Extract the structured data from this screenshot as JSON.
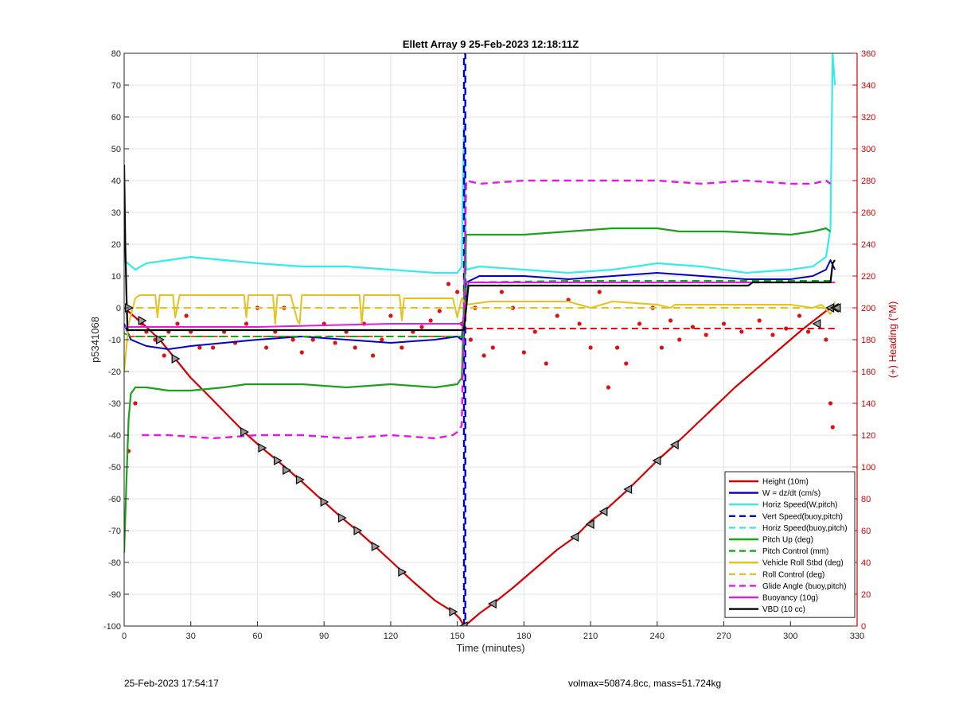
{
  "chart_data": {
    "type": "line",
    "title": "Ellett Array 9 25-Feb-2023 12:18:11Z",
    "xlabel": "Time (minutes)",
    "ylabel": "p5341068",
    "y2label": "(+) Heading (°M)",
    "xlim": [
      0,
      330
    ],
    "ylim": [
      -100,
      80
    ],
    "y2lim": [
      0,
      360
    ],
    "x_ticks": [
      0,
      30,
      60,
      90,
      120,
      150,
      180,
      210,
      240,
      270,
      300,
      330
    ],
    "y_ticks": [
      -100,
      -90,
      -80,
      -70,
      -60,
      -50,
      -40,
      -30,
      -20,
      -10,
      0,
      10,
      20,
      30,
      40,
      50,
      60,
      70,
      80
    ],
    "y2_ticks": [
      0,
      20,
      40,
      60,
      80,
      100,
      120,
      140,
      160,
      180,
      200,
      220,
      240,
      260,
      280,
      300,
      320,
      340,
      360
    ],
    "grid": true,
    "legend_position": "bottom-right",
    "colors": {
      "red": "#d40000",
      "blue": "#0000c8",
      "cyan": "#33ecec",
      "green": "#1aa31a",
      "yellow": "#e3c31b",
      "magenta": "#e01be0",
      "black": "#000000",
      "heading": "#e01010"
    },
    "series": [
      {
        "name": "Height (10m)",
        "color": "#d40000",
        "style": "solid",
        "width": 2.2,
        "x": [
          0,
          5,
          10,
          16,
          23,
          30,
          40,
          54,
          62,
          69,
          79,
          90,
          98,
          105,
          113,
          120,
          130,
          140,
          148,
          151,
          153,
          155,
          160,
          166,
          175,
          185,
          195,
          203,
          210,
          216,
          227,
          240,
          248,
          260,
          275,
          290,
          305,
          316,
          319,
          321
        ],
        "y": [
          0,
          -3,
          -6,
          -10,
          -16,
          -22,
          -29,
          -39,
          -44,
          -48,
          -54,
          -61,
          -66,
          -70,
          -75,
          -79.5,
          -86,
          -92,
          -95.5,
          -97.5,
          -100,
          -99,
          -96,
          -93,
          -88,
          -82,
          -76,
          -72,
          -67,
          -64,
          -57,
          -48,
          -43,
          -35,
          -25,
          -16,
          -7,
          -1,
          0,
          0
        ]
      },
      {
        "name": "W = dz/dt (cm/s)",
        "color": "#0000c8",
        "style": "solid",
        "width": 2,
        "x": [
          0,
          3,
          10,
          20,
          30,
          45,
          60,
          80,
          100,
          120,
          140,
          150,
          152,
          154,
          160,
          180,
          200,
          220,
          240,
          260,
          280,
          300,
          310,
          316,
          318,
          320
        ],
        "y": [
          -5,
          -10,
          -12,
          -13,
          -12,
          -11,
          -10,
          -9,
          -10,
          -11,
          -10,
          -9,
          -10,
          8,
          10,
          10,
          9,
          10,
          11,
          10,
          9,
          9,
          10,
          12,
          15,
          12
        ]
      },
      {
        "name": "Horiz Speed(W,pitch)",
        "color": "#33ecec",
        "style": "solid",
        "width": 2.2,
        "x": [
          0,
          5,
          10,
          20,
          30,
          45,
          60,
          80,
          100,
          120,
          140,
          150,
          152,
          153,
          154,
          160,
          180,
          200,
          220,
          240,
          260,
          280,
          300,
          310,
          316,
          318,
          319,
          320
        ],
        "y": [
          15,
          12,
          14,
          15,
          16,
          15,
          14,
          13,
          13,
          12,
          11,
          11,
          13,
          57,
          12,
          13,
          12,
          11,
          12,
          14,
          13,
          11,
          12,
          13,
          16,
          25,
          80,
          70
        ]
      },
      {
        "name": "Vert Speed(buoy,pitch)",
        "color": "#0000c8",
        "style": "dashed",
        "width": 2.4,
        "x": [
          153,
          153,
          153.6,
          153.6
        ],
        "y": [
          -100,
          80,
          80,
          -100
        ]
      },
      {
        "name": "Horiz Speed(buoy,pitch)",
        "color": "#33ecec",
        "style": "dashed",
        "width": 2,
        "x": [],
        "y": []
      },
      {
        "name": "Pitch Up (deg)",
        "color": "#1aa31a",
        "style": "solid",
        "width": 2.2,
        "x": [
          0,
          1,
          2,
          3,
          5,
          10,
          20,
          30,
          45,
          55,
          60,
          80,
          100,
          120,
          140,
          150,
          152,
          154,
          160,
          180,
          200,
          220,
          240,
          250,
          270,
          300,
          310,
          316,
          318
        ],
        "y": [
          -77,
          -55,
          -35,
          -27,
          -25,
          -25,
          -26,
          -26,
          -25,
          -24,
          -24,
          -24,
          -25,
          -24,
          -25,
          -24,
          -22,
          23,
          23,
          23,
          24,
          25,
          25,
          24,
          24,
          23,
          24,
          25,
          24
        ]
      },
      {
        "name": "Pitch Control (mm)",
        "color": "#1aa31a",
        "style": "dashed",
        "width": 2,
        "x": [
          0,
          3,
          10,
          60,
          120,
          151,
          153,
          154,
          200,
          260,
          300,
          320
        ],
        "y": [
          -8,
          -9,
          -9,
          -9,
          -9,
          -9,
          -9,
          8,
          8.5,
          8.5,
          8.5,
          8.5
        ]
      },
      {
        "name": "Vehicle Roll Stbd (deg)",
        "color": "#e3c31b",
        "style": "solid",
        "width": 2,
        "x": [
          0,
          2,
          5,
          7,
          10,
          14,
          15,
          16,
          18,
          22,
          23,
          25,
          40,
          54,
          55,
          56,
          58,
          67,
          68,
          69,
          75,
          78,
          79,
          80,
          82,
          98,
          100,
          106,
          107,
          108,
          110,
          124,
          125,
          126,
          148,
          150,
          152,
          154,
          165,
          200,
          205,
          210,
          215,
          220,
          240,
          246,
          248,
          280,
          300,
          310,
          314,
          318,
          320
        ],
        "y": [
          -20,
          -5,
          3,
          4,
          4,
          4,
          -3,
          4,
          4,
          4,
          -3,
          4,
          4,
          4,
          -3,
          4,
          4,
          4,
          -5,
          4,
          4,
          -4,
          -5,
          4,
          4,
          4,
          4,
          4,
          -5,
          4,
          4,
          4,
          -4,
          3,
          3,
          -3,
          3,
          1,
          2,
          2,
          1,
          0,
          1,
          2,
          1,
          0,
          1,
          1,
          1,
          0,
          1,
          -2,
          2
        ]
      },
      {
        "name": "Roll Control (deg)",
        "color": "#e3c31b",
        "style": "dashed",
        "width": 2,
        "x": [
          0,
          3,
          10,
          60,
          120,
          151,
          153,
          154,
          200,
          260,
          320
        ],
        "y": [
          0,
          0,
          0,
          0,
          0,
          0,
          0,
          0,
          0,
          0,
          0
        ]
      },
      {
        "name": "Glide Angle (buoy,pitch)",
        "color": "#e01be0",
        "style": "dashed",
        "width": 2.4,
        "x": [
          8,
          20,
          40,
          60,
          80,
          100,
          120,
          140,
          148,
          150,
          151,
          152,
          154,
          160,
          180,
          200,
          220,
          240,
          260,
          280,
          300,
          310,
          316,
          318
        ],
        "y": [
          -40,
          -40,
          -41,
          -40,
          -40,
          -41,
          -40,
          -41,
          -40,
          -39,
          -38,
          -37,
          40,
          39,
          40,
          40,
          40,
          40,
          39,
          40,
          39,
          39,
          40,
          39
        ]
      },
      {
        "name": "Buoyancy (10g)",
        "color": "#e01be0",
        "style": "solid",
        "width": 2,
        "x": [
          0,
          3,
          10,
          60,
          120,
          151,
          153,
          155,
          200,
          260,
          300,
          320
        ],
        "y": [
          -6,
          -6,
          -6,
          -6,
          -5,
          -5,
          -5,
          8,
          8,
          8,
          8,
          8
        ]
      },
      {
        "name": "VBD (10 cc)",
        "color": "#000000",
        "style": "solid",
        "width": 2.2,
        "x": [
          0,
          0.5,
          1,
          1.5,
          2,
          3,
          10,
          60,
          120,
          151,
          153,
          155,
          200,
          281,
          283,
          300,
          316,
          318,
          319,
          320
        ],
        "y": [
          45,
          20,
          5,
          -7,
          -7,
          -7,
          -7,
          -7,
          -7,
          -7,
          -7,
          7,
          7,
          7,
          8,
          8,
          8,
          8,
          14,
          15
        ]
      }
    ],
    "heading_series": {
      "name": "(+) Heading (°M)",
      "axis": "right",
      "color": "#e01010",
      "style": "dots",
      "x": [
        2,
        5,
        8,
        10,
        14,
        18,
        20,
        24,
        28,
        30,
        34,
        40,
        45,
        50,
        55,
        60,
        64,
        68,
        72,
        76,
        80,
        85,
        90,
        95,
        100,
        104,
        108,
        112,
        116,
        120,
        125,
        130,
        134,
        138,
        142,
        146,
        150,
        152,
        156,
        158,
        162,
        166,
        170,
        175,
        180,
        185,
        190,
        195,
        200,
        205,
        210,
        214,
        218,
        222,
        226,
        232,
        238,
        242,
        246,
        250,
        256,
        262,
        270,
        278,
        286,
        292,
        298,
        304,
        308,
        312,
        316,
        318,
        319
      ],
      "y": [
        110,
        140,
        190,
        185,
        180,
        170,
        185,
        190,
        195,
        185,
        175,
        175,
        185,
        178,
        190,
        200,
        175,
        185,
        200,
        180,
        172,
        180,
        190,
        178,
        185,
        175,
        190,
        170,
        180,
        195,
        175,
        185,
        188,
        192,
        198,
        215,
        210,
        190,
        180,
        200,
        170,
        175,
        210,
        200,
        172,
        185,
        165,
        195,
        205,
        190,
        175,
        210,
        150,
        175,
        165,
        190,
        200,
        175,
        192,
        180,
        188,
        183,
        190,
        185,
        192,
        183,
        187,
        195,
        185,
        190,
        180,
        140,
        125
      ]
    },
    "heading_reference": {
      "value": 187,
      "style": "dashed",
      "color": "#e01010"
    },
    "markers": {
      "style": "triangles",
      "color": "#000000",
      "x": [
        2,
        8,
        16,
        23,
        54,
        62,
        69,
        73,
        79,
        90,
        98,
        105,
        113,
        125,
        148,
        153,
        166,
        203,
        210,
        216,
        227,
        240,
        248,
        312,
        318,
        320,
        321
      ],
      "y": [
        0,
        -4,
        -10,
        -16,
        -39,
        -44,
        -48,
        -51,
        -54,
        -61,
        -66,
        -70,
        -75,
        -83,
        -95.5,
        -100,
        -93,
        -72,
        -68,
        -64,
        -57,
        -48,
        -43,
        -5,
        0,
        0,
        0
      ]
    }
  },
  "footer": {
    "date": "25-Feb-2023 17:54:17",
    "info": "volmax=50874.8cc, mass=51.724kg"
  }
}
